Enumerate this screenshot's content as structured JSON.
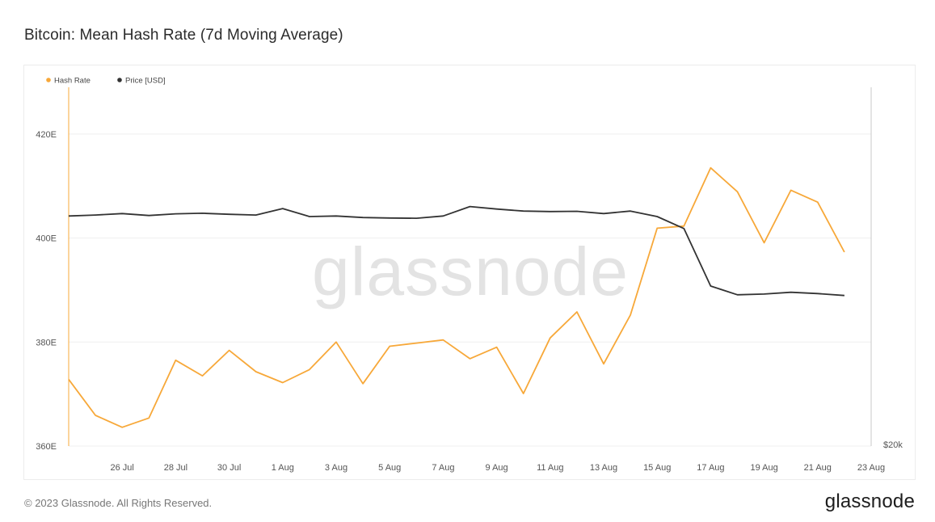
{
  "title": "Bitcoin: Mean Hash Rate (7d Moving Average)",
  "footer": {
    "copyright": "© 2023 Glassnode. All Rights Reserved.",
    "logo": "glassnode"
  },
  "watermark": "glassnode",
  "chart_data": {
    "type": "line",
    "x": [
      "2023-07-24",
      "2023-07-25",
      "2023-07-26",
      "2023-07-27",
      "2023-07-28",
      "2023-07-29",
      "2023-07-30",
      "2023-07-31",
      "2023-08-01",
      "2023-08-02",
      "2023-08-03",
      "2023-08-04",
      "2023-08-05",
      "2023-08-06",
      "2023-08-07",
      "2023-08-08",
      "2023-08-09",
      "2023-08-10",
      "2023-08-11",
      "2023-08-12",
      "2023-08-13",
      "2023-08-14",
      "2023-08-15",
      "2023-08-16",
      "2023-08-17",
      "2023-08-18",
      "2023-08-19",
      "2023-08-20",
      "2023-08-21",
      "2023-08-22"
    ],
    "x_ticks": [
      "26 Jul",
      "28 Jul",
      "30 Jul",
      "1 Aug",
      "3 Aug",
      "5 Aug",
      "7 Aug",
      "9 Aug",
      "11 Aug",
      "13 Aug",
      "15 Aug",
      "17 Aug",
      "19 Aug",
      "21 Aug",
      "23 Aug"
    ],
    "y_left": {
      "ticks": [
        "360E",
        "380E",
        "400E",
        "420E"
      ],
      "range": [
        360,
        429
      ]
    },
    "y_right": {
      "ticks": [
        "$20k"
      ]
    },
    "legend": {
      "position": "top-left"
    },
    "grid": true,
    "series": [
      {
        "name": "Hash Rate",
        "color": "#f7a839",
        "axis": "left",
        "values": [
          372.8,
          365.9,
          363.6,
          365.4,
          376.5,
          373.5,
          378.4,
          374.3,
          372.2,
          374.7,
          380.0,
          372.0,
          379.2,
          379.8,
          380.4,
          376.8,
          379.0,
          370.1,
          380.8,
          385.8,
          375.8,
          385.2,
          401.9,
          402.3,
          413.5,
          408.9,
          399.1,
          409.2,
          406.9,
          397.3
        ]
      },
      {
        "name": "Price [USD]",
        "color": "#333333",
        "axis": "right",
        "values": [
          29200,
          29240,
          29300,
          29220,
          29290,
          29310,
          29270,
          29240,
          29500,
          29180,
          29200,
          29140,
          29120,
          29110,
          29200,
          29580,
          29480,
          29400,
          29380,
          29390,
          29300,
          29400,
          29180,
          28700,
          26400,
          26050,
          26080,
          26150,
          26100,
          26020
        ]
      }
    ]
  }
}
